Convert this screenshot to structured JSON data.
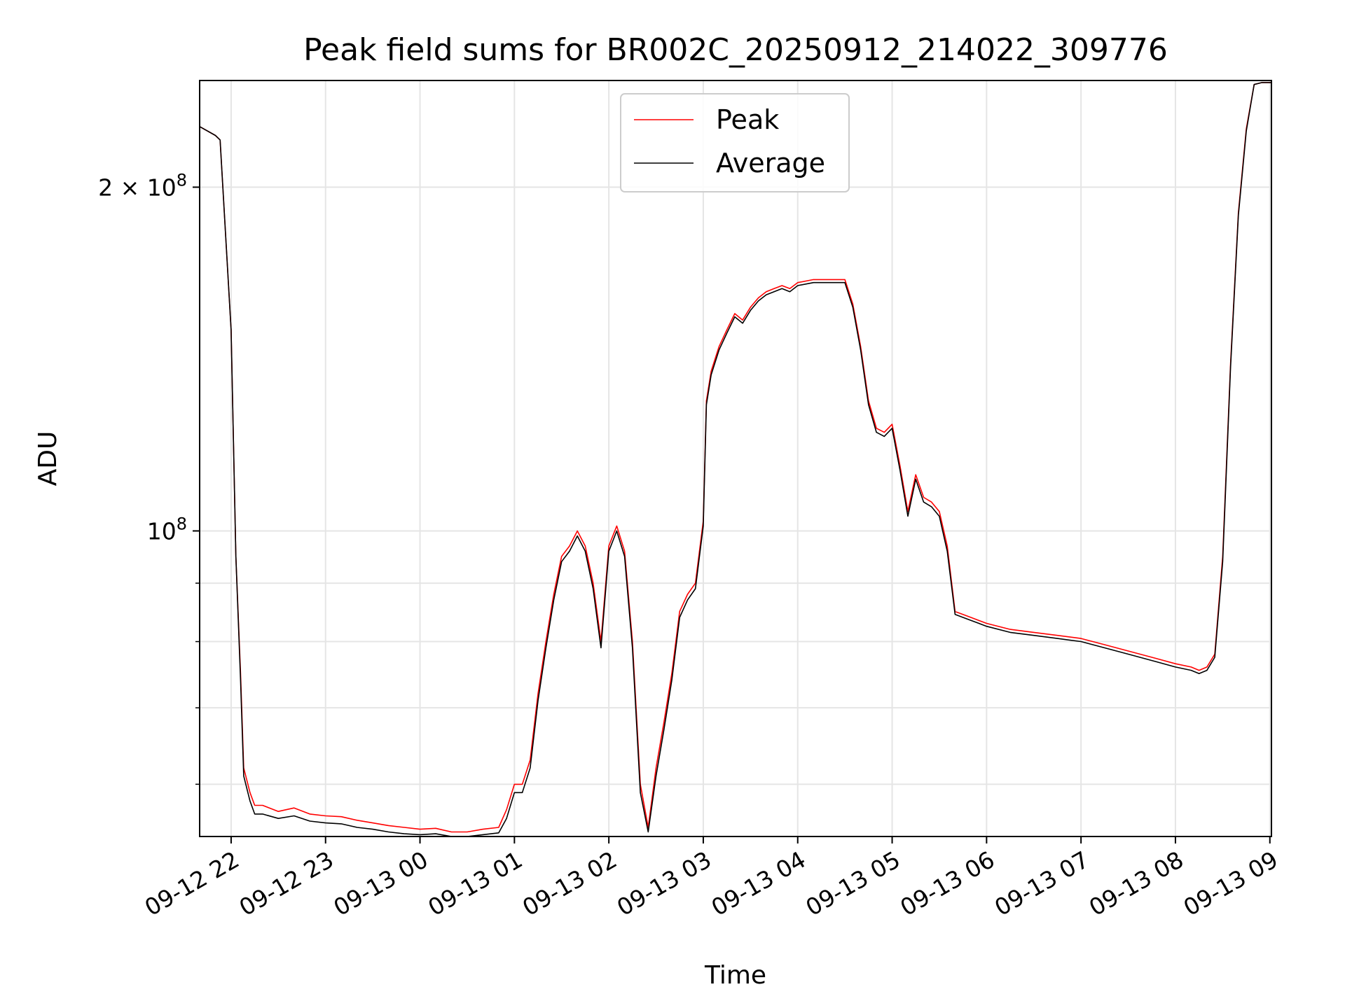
{
  "chart_data": {
    "type": "line",
    "title": "Peak field sums for BR002C_20250912_214022_309776",
    "xlabel": "Time",
    "ylabel": "ADU",
    "y_scale": "log",
    "grid": true,
    "legend_position": "upper center",
    "xlim": [
      "2025-09-12 21:40",
      "2025-09-13 09:01"
    ],
    "ylim": [
      54000000,
      248000000
    ],
    "x_ticks": [
      "09-12 22",
      "09-12 23",
      "09-13 00",
      "09-13 01",
      "09-13 02",
      "09-13 03",
      "09-13 04",
      "09-13 05",
      "09-13 06",
      "09-13 07",
      "09-13 08",
      "09-13 09"
    ],
    "x_tick_times": [
      "2025-09-12 22:00",
      "2025-09-12 23:00",
      "2025-09-13 00:00",
      "2025-09-13 01:00",
      "2025-09-13 02:00",
      "2025-09-13 03:00",
      "2025-09-13 04:00",
      "2025-09-13 05:00",
      "2025-09-13 06:00",
      "2025-09-13 07:00",
      "2025-09-13 08:00",
      "2025-09-13 09:00"
    ],
    "y_major_ticks": [
      {
        "value": 100000000,
        "base": "10",
        "exp": "8",
        "mantissa": ""
      },
      {
        "value": 200000000,
        "base": "10",
        "exp": "8",
        "mantissa": "2 × "
      }
    ],
    "y_minor_ticks": [
      60000000,
      70000000,
      80000000,
      90000000
    ],
    "series": [
      {
        "name": "Peak",
        "color": "#ff0000",
        "x": [
          "2025-09-12 21:40",
          "2025-09-12 21:50",
          "2025-09-12 21:53",
          "2025-09-12 22:00",
          "2025-09-12 22:03",
          "2025-09-12 22:06",
          "2025-09-12 22:08",
          "2025-09-12 22:12",
          "2025-09-12 22:15",
          "2025-09-12 22:20",
          "2025-09-12 22:30",
          "2025-09-12 22:40",
          "2025-09-12 22:50",
          "2025-09-12 23:00",
          "2025-09-12 23:10",
          "2025-09-12 23:20",
          "2025-09-12 23:30",
          "2025-09-12 23:40",
          "2025-09-12 23:50",
          "2025-09-13 00:00",
          "2025-09-13 00:10",
          "2025-09-13 00:20",
          "2025-09-13 00:30",
          "2025-09-13 00:40",
          "2025-09-13 00:50",
          "2025-09-13 00:55",
          "2025-09-13 01:00",
          "2025-09-13 01:05",
          "2025-09-13 01:10",
          "2025-09-13 01:15",
          "2025-09-13 01:20",
          "2025-09-13 01:25",
          "2025-09-13 01:30",
          "2025-09-13 01:35",
          "2025-09-13 01:40",
          "2025-09-13 01:45",
          "2025-09-13 01:50",
          "2025-09-13 01:55",
          "2025-09-13 02:00",
          "2025-09-13 02:05",
          "2025-09-13 02:10",
          "2025-09-13 02:15",
          "2025-09-13 02:20",
          "2025-09-13 02:25",
          "2025-09-13 02:30",
          "2025-09-13 02:35",
          "2025-09-13 02:40",
          "2025-09-13 02:45",
          "2025-09-13 02:50",
          "2025-09-13 02:55",
          "2025-09-13 03:00",
          "2025-09-13 03:02",
          "2025-09-13 03:05",
          "2025-09-13 03:10",
          "2025-09-13 03:15",
          "2025-09-13 03:20",
          "2025-09-13 03:25",
          "2025-09-13 03:30",
          "2025-09-13 03:35",
          "2025-09-13 03:40",
          "2025-09-13 03:45",
          "2025-09-13 03:50",
          "2025-09-13 03:55",
          "2025-09-13 04:00",
          "2025-09-13 04:10",
          "2025-09-13 04:20",
          "2025-09-13 04:30",
          "2025-09-13 04:35",
          "2025-09-13 04:40",
          "2025-09-13 04:45",
          "2025-09-13 04:50",
          "2025-09-13 04:55",
          "2025-09-13 05:00",
          "2025-09-13 05:05",
          "2025-09-13 05:10",
          "2025-09-13 05:15",
          "2025-09-13 05:20",
          "2025-09-13 05:25",
          "2025-09-13 05:30",
          "2025-09-13 05:35",
          "2025-09-13 05:40",
          "2025-09-13 05:45",
          "2025-09-13 05:50",
          "2025-09-13 06:00",
          "2025-09-13 06:15",
          "2025-09-13 06:30",
          "2025-09-13 06:45",
          "2025-09-13 07:00",
          "2025-09-13 07:15",
          "2025-09-13 07:30",
          "2025-09-13 07:45",
          "2025-09-13 08:00",
          "2025-09-13 08:10",
          "2025-09-13 08:15",
          "2025-09-13 08:20",
          "2025-09-13 08:25",
          "2025-09-13 08:30",
          "2025-09-13 08:35",
          "2025-09-13 08:40",
          "2025-09-13 08:45",
          "2025-09-13 08:50",
          "2025-09-13 08:55",
          "2025-09-13 09:01"
        ],
        "y": [
          226000000,
          222000000,
          220000000,
          150000000,
          95000000,
          75000000,
          62000000,
          59000000,
          57500000,
          57500000,
          56800000,
          57200000,
          56500000,
          56300000,
          56200000,
          55800000,
          55500000,
          55200000,
          55000000,
          54800000,
          54900000,
          54500000,
          54500000,
          54800000,
          55000000,
          57000000,
          60000000,
          60000000,
          63000000,
          72000000,
          80000000,
          88000000,
          95000000,
          97000000,
          100000000,
          97000000,
          90000000,
          80000000,
          97000000,
          101000000,
          96000000,
          80000000,
          60000000,
          55000000,
          62000000,
          68000000,
          75000000,
          85000000,
          88000000,
          90000000,
          102000000,
          130000000,
          138000000,
          145000000,
          150000000,
          155000000,
          153000000,
          157000000,
          160000000,
          162000000,
          163000000,
          164000000,
          163000000,
          165000000,
          166000000,
          166000000,
          166000000,
          158000000,
          145000000,
          130000000,
          123000000,
          122000000,
          124000000,
          114000000,
          104000000,
          112000000,
          107000000,
          106000000,
          104000000,
          97000000,
          85000000,
          84500000,
          84000000,
          83000000,
          82000000,
          81500000,
          81000000,
          80500000,
          79500000,
          78500000,
          77500000,
          76500000,
          76000000,
          75500000,
          76000000,
          78000000,
          95000000,
          140000000,
          190000000,
          225000000,
          246000000,
          247000000,
          247000000
        ]
      },
      {
        "name": "Average",
        "color": "#000000",
        "x": [
          "2025-09-12 21:40",
          "2025-09-12 21:50",
          "2025-09-12 21:53",
          "2025-09-12 22:00",
          "2025-09-12 22:03",
          "2025-09-12 22:06",
          "2025-09-12 22:08",
          "2025-09-12 22:12",
          "2025-09-12 22:15",
          "2025-09-12 22:20",
          "2025-09-12 22:30",
          "2025-09-12 22:40",
          "2025-09-12 22:50",
          "2025-09-12 23:00",
          "2025-09-12 23:10",
          "2025-09-12 23:20",
          "2025-09-12 23:30",
          "2025-09-12 23:40",
          "2025-09-12 23:50",
          "2025-09-13 00:00",
          "2025-09-13 00:10",
          "2025-09-13 00:20",
          "2025-09-13 00:30",
          "2025-09-13 00:40",
          "2025-09-13 00:50",
          "2025-09-13 00:55",
          "2025-09-13 01:00",
          "2025-09-13 01:05",
          "2025-09-13 01:10",
          "2025-09-13 01:15",
          "2025-09-13 01:20",
          "2025-09-13 01:25",
          "2025-09-13 01:30",
          "2025-09-13 01:35",
          "2025-09-13 01:40",
          "2025-09-13 01:45",
          "2025-09-13 01:50",
          "2025-09-13 01:55",
          "2025-09-13 02:00",
          "2025-09-13 02:05",
          "2025-09-13 02:10",
          "2025-09-13 02:15",
          "2025-09-13 02:20",
          "2025-09-13 02:25",
          "2025-09-13 02:30",
          "2025-09-13 02:35",
          "2025-09-13 02:40",
          "2025-09-13 02:45",
          "2025-09-13 02:50",
          "2025-09-13 02:55",
          "2025-09-13 03:00",
          "2025-09-13 03:02",
          "2025-09-13 03:05",
          "2025-09-13 03:10",
          "2025-09-13 03:15",
          "2025-09-13 03:20",
          "2025-09-13 03:25",
          "2025-09-13 03:30",
          "2025-09-13 03:35",
          "2025-09-13 03:40",
          "2025-09-13 03:45",
          "2025-09-13 03:50",
          "2025-09-13 03:55",
          "2025-09-13 04:00",
          "2025-09-13 04:10",
          "2025-09-13 04:20",
          "2025-09-13 04:30",
          "2025-09-13 04:35",
          "2025-09-13 04:40",
          "2025-09-13 04:45",
          "2025-09-13 04:50",
          "2025-09-13 04:55",
          "2025-09-13 05:00",
          "2025-09-13 05:05",
          "2025-09-13 05:10",
          "2025-09-13 05:15",
          "2025-09-13 05:20",
          "2025-09-13 05:25",
          "2025-09-13 05:30",
          "2025-09-13 05:35",
          "2025-09-13 05:40",
          "2025-09-13 05:45",
          "2025-09-13 05:50",
          "2025-09-13 06:00",
          "2025-09-13 06:15",
          "2025-09-13 06:30",
          "2025-09-13 06:45",
          "2025-09-13 07:00",
          "2025-09-13 07:15",
          "2025-09-13 07:30",
          "2025-09-13 07:45",
          "2025-09-13 08:00",
          "2025-09-13 08:10",
          "2025-09-13 08:15",
          "2025-09-13 08:20",
          "2025-09-13 08:25",
          "2025-09-13 08:30",
          "2025-09-13 08:35",
          "2025-09-13 08:40",
          "2025-09-13 08:45",
          "2025-09-13 08:50",
          "2025-09-13 08:55",
          "2025-09-13 09:01"
        ],
        "y": [
          226000000,
          222000000,
          220000000,
          150000000,
          95000000,
          74000000,
          61000000,
          58000000,
          56500000,
          56500000,
          56000000,
          56300000,
          55700000,
          55500000,
          55400000,
          55000000,
          54800000,
          54500000,
          54300000,
          54200000,
          54300000,
          54000000,
          54000000,
          54200000,
          54400000,
          56000000,
          59000000,
          59000000,
          62000000,
          71000000,
          79000000,
          87000000,
          94000000,
          96000000,
          99000000,
          96000000,
          89000000,
          79000000,
          96000000,
          100000000,
          95000000,
          79000000,
          59000000,
          54500000,
          61000000,
          67000000,
          74000000,
          84000000,
          87000000,
          89000000,
          101000000,
          129000000,
          137000000,
          144000000,
          149000000,
          154000000,
          152000000,
          156000000,
          159000000,
          161000000,
          162000000,
          163000000,
          162000000,
          164000000,
          165000000,
          165000000,
          165000000,
          157000000,
          144000000,
          129000000,
          122000000,
          121000000,
          123000000,
          113000000,
          103000000,
          111000000,
          106000000,
          105000000,
          103000000,
          96000000,
          84500000,
          84000000,
          83500000,
          82500000,
          81500000,
          81000000,
          80500000,
          80000000,
          79000000,
          78000000,
          77000000,
          76000000,
          75500000,
          75000000,
          75500000,
          77500000,
          94000000,
          139000000,
          189000000,
          224000000,
          246000000,
          247000000,
          247000000
        ]
      }
    ]
  }
}
